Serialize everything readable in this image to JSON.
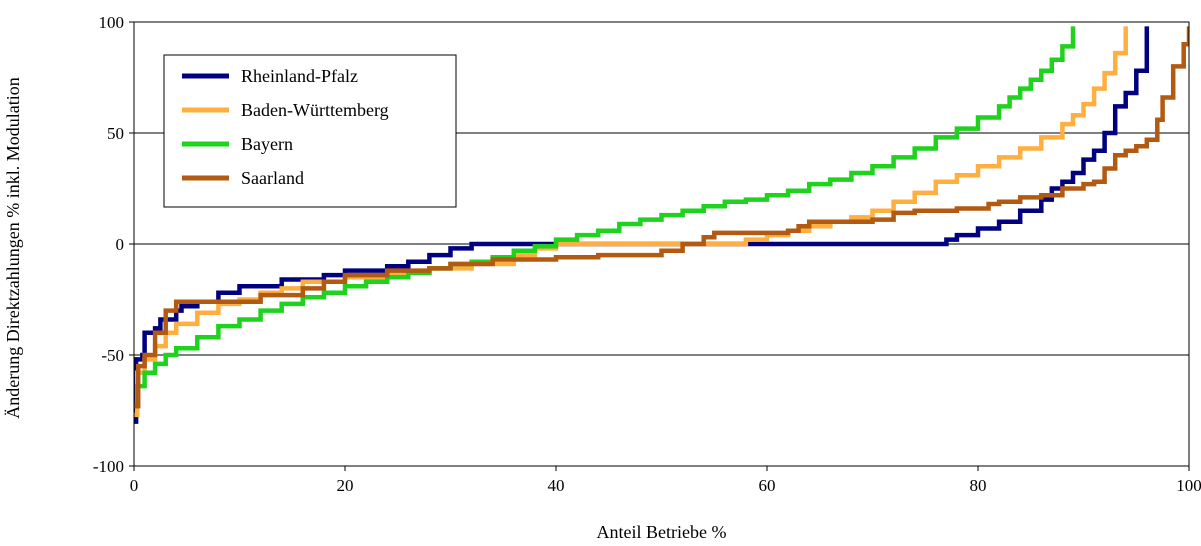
{
  "chart_data": {
    "type": "line",
    "title": "",
    "xlabel": "Anteil Betriebe %",
    "ylabel": "Änderung Direktzahlungen % inkl. Modulation",
    "xlim": [
      0,
      100
    ],
    "ylim": [
      -100,
      100
    ],
    "x_ticks": [
      0,
      20,
      40,
      60,
      80,
      100
    ],
    "y_ticks": [
      -100,
      -50,
      0,
      50,
      100
    ],
    "grid": "horizontal",
    "legend_position": "top-left",
    "series": [
      {
        "name": "Rheinland-Pfalz",
        "color": "#000080",
        "points": [
          [
            0,
            -80
          ],
          [
            0.2,
            -52
          ],
          [
            0.8,
            -50
          ],
          [
            1,
            -40
          ],
          [
            2,
            -38
          ],
          [
            2.5,
            -34
          ],
          [
            4,
            -30
          ],
          [
            4.5,
            -28
          ],
          [
            6,
            -26
          ],
          [
            8,
            -22
          ],
          [
            10,
            -19
          ],
          [
            14,
            -16
          ],
          [
            18,
            -14
          ],
          [
            20,
            -12
          ],
          [
            24,
            -10
          ],
          [
            26,
            -8
          ],
          [
            28,
            -5
          ],
          [
            30,
            -2
          ],
          [
            32,
            0
          ],
          [
            52,
            0
          ],
          [
            76,
            0
          ],
          [
            77,
            2
          ],
          [
            78,
            4
          ],
          [
            80,
            7
          ],
          [
            82,
            10
          ],
          [
            84,
            15
          ],
          [
            86,
            20
          ],
          [
            87,
            25
          ],
          [
            88,
            28
          ],
          [
            89,
            32
          ],
          [
            90,
            38
          ],
          [
            91,
            42
          ],
          [
            92,
            50
          ],
          [
            93,
            62
          ],
          [
            94,
            68
          ],
          [
            95,
            78
          ],
          [
            96,
            98
          ]
        ]
      },
      {
        "name": "Baden-Württemberg",
        "color": "#FFAF3F",
        "points": [
          [
            0,
            -77
          ],
          [
            0.3,
            -58
          ],
          [
            1,
            -52
          ],
          [
            2,
            -46
          ],
          [
            3,
            -40
          ],
          [
            4,
            -36
          ],
          [
            6,
            -31
          ],
          [
            8,
            -27
          ],
          [
            10,
            -25
          ],
          [
            12,
            -22
          ],
          [
            14,
            -20
          ],
          [
            16,
            -17
          ],
          [
            20,
            -15
          ],
          [
            24,
            -13
          ],
          [
            28,
            -11
          ],
          [
            32,
            -9
          ],
          [
            36,
            -5
          ],
          [
            38,
            -2
          ],
          [
            40,
            0
          ],
          [
            56,
            0
          ],
          [
            58,
            2
          ],
          [
            60,
            4
          ],
          [
            62,
            6
          ],
          [
            64,
            8
          ],
          [
            66,
            10
          ],
          [
            68,
            12
          ],
          [
            70,
            15
          ],
          [
            72,
            19
          ],
          [
            74,
            23
          ],
          [
            76,
            28
          ],
          [
            78,
            31
          ],
          [
            80,
            35
          ],
          [
            82,
            39
          ],
          [
            84,
            43
          ],
          [
            86,
            48
          ],
          [
            88,
            54
          ],
          [
            89,
            58
          ],
          [
            90,
            63
          ],
          [
            91,
            70
          ],
          [
            92,
            77
          ],
          [
            93,
            86
          ],
          [
            94,
            98
          ]
        ]
      },
      {
        "name": "Bayern",
        "color": "#1ED21E",
        "points": [
          [
            0,
            -73
          ],
          [
            0.3,
            -64
          ],
          [
            1,
            -58
          ],
          [
            2,
            -54
          ],
          [
            3,
            -50
          ],
          [
            4,
            -47
          ],
          [
            6,
            -42
          ],
          [
            8,
            -37
          ],
          [
            10,
            -34
          ],
          [
            12,
            -30
          ],
          [
            14,
            -27
          ],
          [
            16,
            -24
          ],
          [
            18,
            -22
          ],
          [
            20,
            -19
          ],
          [
            22,
            -17
          ],
          [
            24,
            -15
          ],
          [
            26,
            -13
          ],
          [
            28,
            -11
          ],
          [
            30,
            -9
          ],
          [
            32,
            -8
          ],
          [
            34,
            -6
          ],
          [
            36,
            -3
          ],
          [
            38,
            -1
          ],
          [
            40,
            2
          ],
          [
            42,
            4
          ],
          [
            44,
            6
          ],
          [
            46,
            9
          ],
          [
            48,
            11
          ],
          [
            50,
            13
          ],
          [
            52,
            15
          ],
          [
            54,
            17
          ],
          [
            56,
            19
          ],
          [
            58,
            20
          ],
          [
            60,
            22
          ],
          [
            62,
            24
          ],
          [
            64,
            27
          ],
          [
            66,
            29
          ],
          [
            68,
            32
          ],
          [
            70,
            35
          ],
          [
            72,
            39
          ],
          [
            74,
            43
          ],
          [
            76,
            48
          ],
          [
            78,
            52
          ],
          [
            80,
            57
          ],
          [
            82,
            62
          ],
          [
            83,
            66
          ],
          [
            84,
            70
          ],
          [
            85,
            74
          ],
          [
            86,
            78
          ],
          [
            87,
            83
          ],
          [
            88,
            89
          ],
          [
            89,
            98
          ]
        ]
      },
      {
        "name": "Saarland",
        "color": "#B35A12",
        "points": [
          [
            0,
            -73
          ],
          [
            0.4,
            -55
          ],
          [
            1,
            -50
          ],
          [
            2,
            -40
          ],
          [
            3,
            -30
          ],
          [
            4,
            -26
          ],
          [
            6,
            -26
          ],
          [
            10,
            -26
          ],
          [
            12,
            -23
          ],
          [
            16,
            -20
          ],
          [
            18,
            -17
          ],
          [
            20,
            -14
          ],
          [
            24,
            -12
          ],
          [
            28,
            -11
          ],
          [
            30,
            -9
          ],
          [
            34,
            -7
          ],
          [
            40,
            -6
          ],
          [
            44,
            -5
          ],
          [
            48,
            -5
          ],
          [
            49,
            -5
          ],
          [
            50,
            -3
          ],
          [
            52,
            0
          ],
          [
            54,
            3
          ],
          [
            55,
            5
          ],
          [
            58,
            5
          ],
          [
            62,
            6
          ],
          [
            63,
            8
          ],
          [
            64,
            10
          ],
          [
            66,
            10
          ],
          [
            70,
            11
          ],
          [
            72,
            14
          ],
          [
            74,
            15
          ],
          [
            78,
            16
          ],
          [
            80,
            16
          ],
          [
            81,
            18
          ],
          [
            82,
            19
          ],
          [
            84,
            21
          ],
          [
            86,
            22
          ],
          [
            88,
            25
          ],
          [
            90,
            27
          ],
          [
            91,
            28
          ],
          [
            92,
            34
          ],
          [
            93,
            40
          ],
          [
            94,
            42
          ],
          [
            95,
            44
          ],
          [
            96,
            47
          ],
          [
            97,
            56
          ],
          [
            97.5,
            66
          ],
          [
            98.5,
            80
          ],
          [
            99.5,
            90
          ],
          [
            100,
            98
          ]
        ]
      }
    ]
  }
}
